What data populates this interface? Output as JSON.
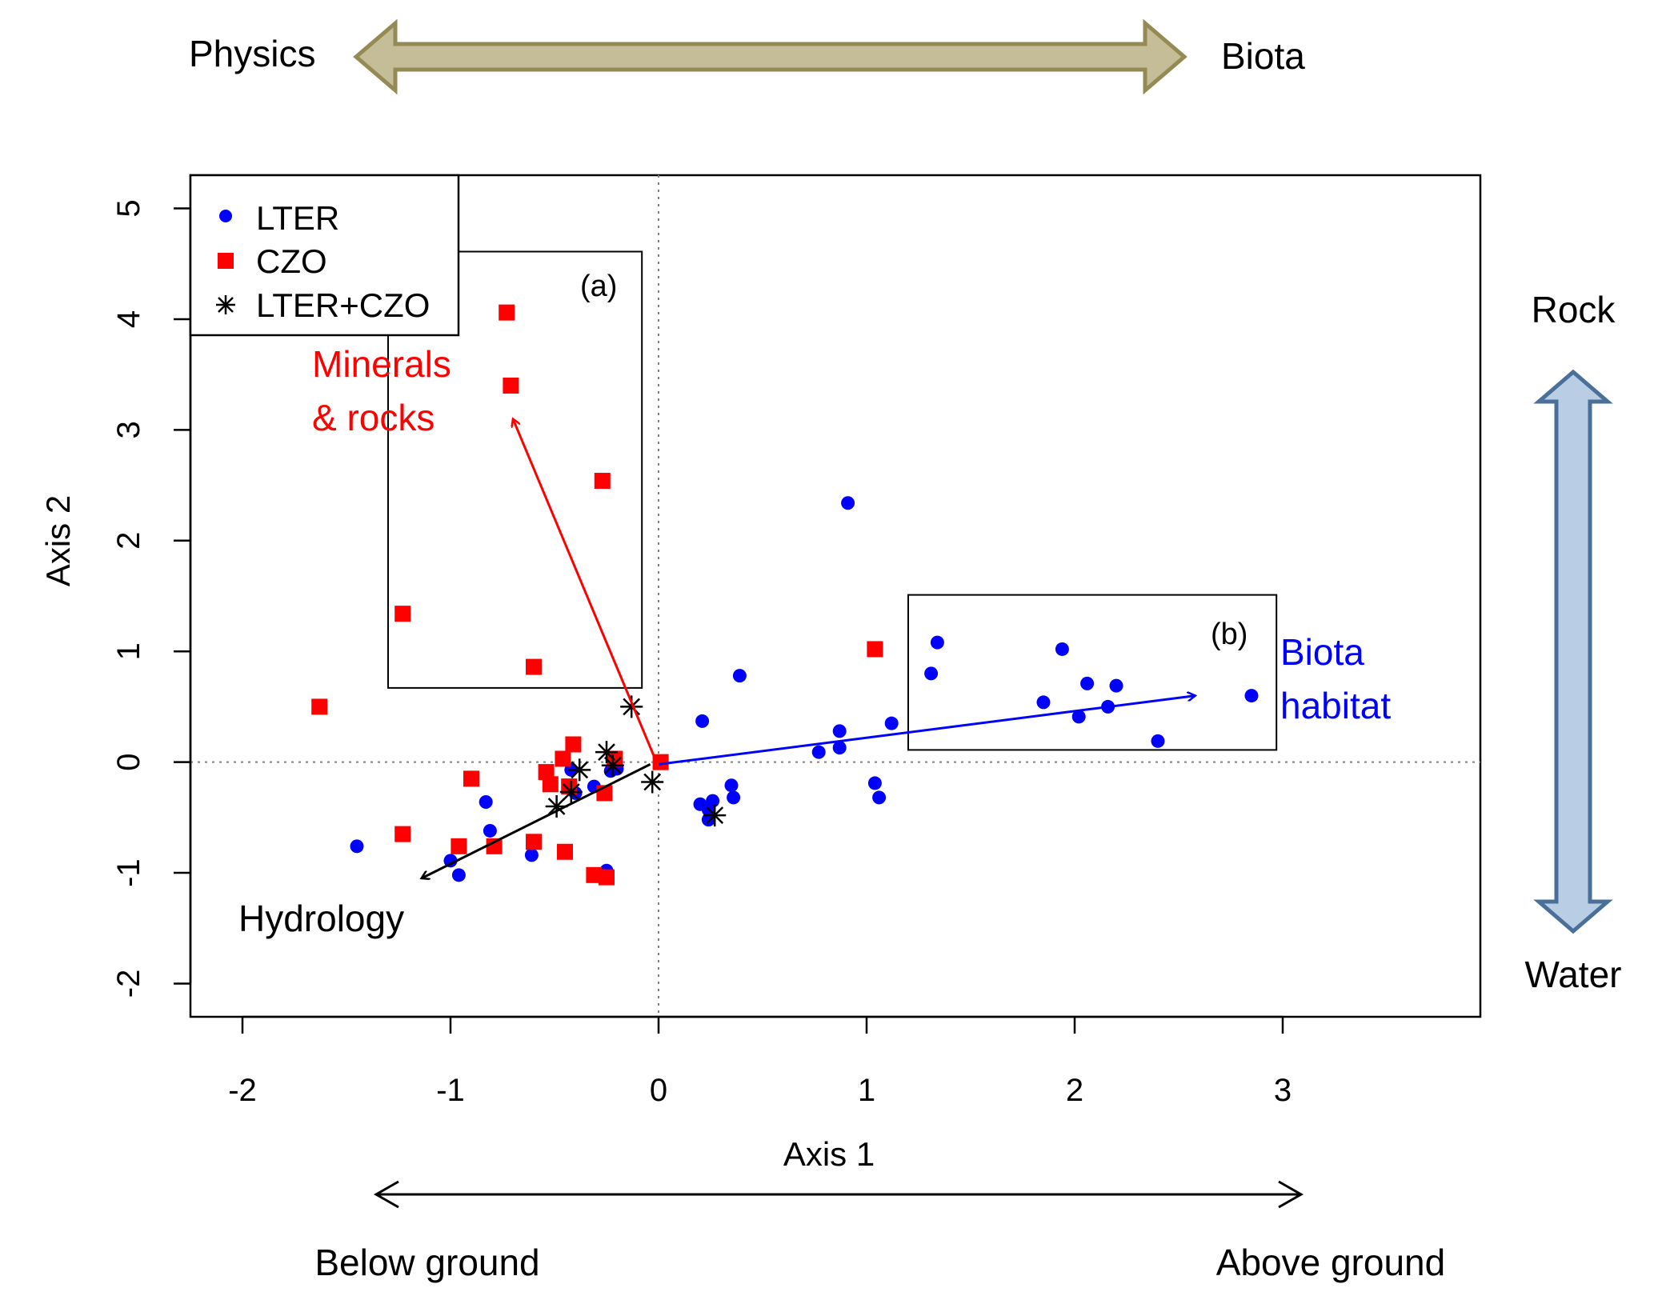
{
  "colors": {
    "lter": "#0000ff",
    "czo": "#ff0000",
    "both": "#000000",
    "physics_biota_arrow_fill": "#c4bd97",
    "physics_biota_arrow_stroke": "#948a54",
    "rock_water_arrow_fill": "#b9cde5",
    "rock_water_arrow_stroke": "#4a6f99"
  },
  "annotations": {
    "physics": "Physics",
    "biota": "Biota",
    "rock": "Rock",
    "water": "Water",
    "below_ground": "Below ground",
    "above_ground": "Above ground",
    "box_a": "(a)",
    "box_b": "(b)",
    "minerals_line1": "Minerals",
    "minerals_line2": "& rocks",
    "biota_habitat_line1": "Biota",
    "biota_habitat_line2": "habitat",
    "hydrology": "Hydrology"
  },
  "legend": [
    {
      "label": "LTER",
      "marker": "circle",
      "color": "#0000ff"
    },
    {
      "label": "CZO",
      "marker": "square",
      "color": "#ff0000"
    },
    {
      "label": "LTER+CZO",
      "marker": "asterisk",
      "color": "#000000"
    }
  ],
  "chart_data": {
    "type": "scatter",
    "xlabel": "Axis 1",
    "ylabel": "Axis 2",
    "xlim": [
      -2.25,
      3.95
    ],
    "ylim": [
      -2.3,
      5.3
    ],
    "xticks": [
      -2,
      -1,
      0,
      1,
      2,
      3
    ],
    "yticks": [
      -2,
      -1,
      0,
      1,
      2,
      3,
      4,
      5
    ],
    "reference_lines": {
      "x": 0,
      "y": 0,
      "style": "dotted"
    },
    "series": [
      {
        "name": "LTER",
        "marker": "circle",
        "points": [
          [
            0.91,
            2.34
          ],
          [
            1.34,
            1.08
          ],
          [
            1.31,
            0.8
          ],
          [
            1.94,
            1.02
          ],
          [
            2.06,
            0.71
          ],
          [
            2.2,
            0.69
          ],
          [
            1.85,
            0.54
          ],
          [
            2.16,
            0.5
          ],
          [
            2.02,
            0.41
          ],
          [
            2.85,
            0.6
          ],
          [
            2.4,
            0.19
          ],
          [
            0.39,
            0.78
          ],
          [
            0.21,
            0.37
          ],
          [
            1.12,
            0.35
          ],
          [
            0.87,
            0.28
          ],
          [
            0.87,
            0.13
          ],
          [
            0.77,
            0.09
          ],
          [
            1.04,
            -0.19
          ],
          [
            1.06,
            -0.32
          ],
          [
            0.35,
            -0.21
          ],
          [
            0.36,
            -0.32
          ],
          [
            0.26,
            -0.35
          ],
          [
            0.2,
            -0.38
          ],
          [
            0.24,
            -0.43
          ],
          [
            0.24,
            -0.52
          ],
          [
            -0.83,
            -0.36
          ],
          [
            -0.81,
            -0.62
          ],
          [
            -1.45,
            -0.76
          ],
          [
            -1.0,
            -0.89
          ],
          [
            -0.96,
            -1.02
          ],
          [
            -0.61,
            -0.84
          ],
          [
            -0.25,
            -0.98
          ],
          [
            -0.31,
            -0.22
          ],
          [
            -0.42,
            -0.07
          ],
          [
            -0.4,
            -0.28
          ],
          [
            -0.23,
            -0.08
          ],
          [
            -0.2,
            -0.06
          ]
        ]
      },
      {
        "name": "CZO",
        "marker": "square",
        "points": [
          [
            -0.73,
            4.06
          ],
          [
            -0.71,
            3.4
          ],
          [
            -0.27,
            2.54
          ],
          [
            -1.23,
            1.34
          ],
          [
            -0.6,
            0.86
          ],
          [
            -1.63,
            0.5
          ],
          [
            1.04,
            1.02
          ],
          [
            0.01,
            0.0
          ],
          [
            -0.41,
            0.16
          ],
          [
            -0.46,
            0.03
          ],
          [
            -0.21,
            0.03
          ],
          [
            -0.54,
            -0.09
          ],
          [
            -0.52,
            -0.2
          ],
          [
            -0.43,
            -0.22
          ],
          [
            -0.26,
            -0.28
          ],
          [
            -0.9,
            -0.15
          ],
          [
            -1.23,
            -0.65
          ],
          [
            -0.96,
            -0.76
          ],
          [
            -0.79,
            -0.76
          ],
          [
            -0.6,
            -0.72
          ],
          [
            -0.45,
            -0.81
          ],
          [
            -0.31,
            -1.02
          ],
          [
            -0.25,
            -1.04
          ]
        ]
      },
      {
        "name": "LTER+CZO",
        "marker": "asterisk",
        "points": [
          [
            -0.13,
            0.5
          ],
          [
            -0.25,
            0.09
          ],
          [
            -0.22,
            -0.03
          ],
          [
            -0.38,
            -0.07
          ],
          [
            -0.42,
            -0.27
          ],
          [
            -0.49,
            -0.4
          ],
          [
            -0.03,
            -0.18
          ],
          [
            0.27,
            -0.48
          ]
        ]
      }
    ],
    "vectors": [
      {
        "name": "Minerals & rocks",
        "from": [
          -0.01,
          0.0
        ],
        "to": [
          -0.7,
          3.1
        ],
        "color": "#ff0000"
      },
      {
        "name": "Biota habitat",
        "from": [
          0.0,
          -0.02
        ],
        "to": [
          2.58,
          0.6
        ],
        "color": "#0000ff"
      },
      {
        "name": "Hydrology",
        "from": [
          -0.04,
          -0.02
        ],
        "to": [
          -1.14,
          -1.05
        ],
        "color": "#000000"
      }
    ],
    "highlight_boxes": [
      {
        "label": "(a)",
        "x_range": [
          -1.3,
          -0.08
        ],
        "y_range": [
          0.67,
          4.61
        ]
      },
      {
        "label": "(b)",
        "x_range": [
          1.2,
          2.97
        ],
        "y_range": [
          0.11,
          1.51
        ]
      }
    ]
  }
}
